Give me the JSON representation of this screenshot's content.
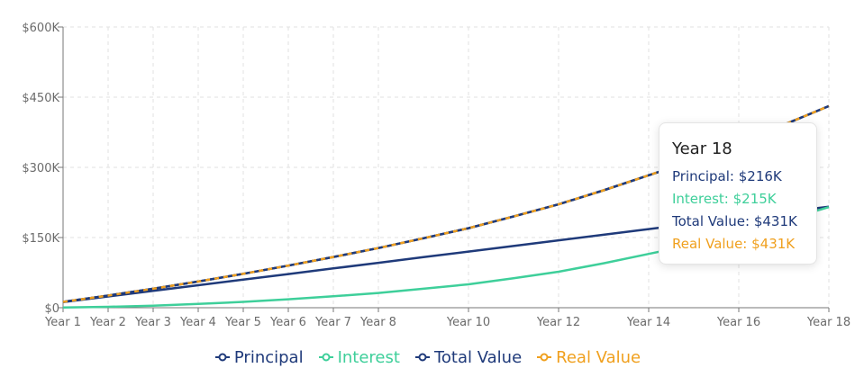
{
  "chart_data": {
    "type": "line",
    "x": [
      1,
      2,
      3,
      4,
      5,
      6,
      7,
      8,
      9,
      10,
      11,
      12,
      13,
      14,
      15,
      16,
      17,
      18
    ],
    "x_tick_labels": [
      {
        "x": 1,
        "label": "Year 1"
      },
      {
        "x": 2,
        "label": "Year 2"
      },
      {
        "x": 3,
        "label": "Year 3"
      },
      {
        "x": 4,
        "label": "Year 4"
      },
      {
        "x": 5,
        "label": "Year 5"
      },
      {
        "x": 6,
        "label": "Year 6"
      },
      {
        "x": 7,
        "label": "Year 7"
      },
      {
        "x": 8,
        "label": "Year 8"
      },
      {
        "x": 10,
        "label": "Year 10"
      },
      {
        "x": 12,
        "label": "Year 12"
      },
      {
        "x": 14,
        "label": "Year 14"
      },
      {
        "x": 16,
        "label": "Year 16"
      },
      {
        "x": 18,
        "label": "Year 18"
      }
    ],
    "y_ticks": [
      0,
      150000,
      300000,
      450000,
      600000
    ],
    "y_tick_labels": [
      "$0",
      "$150K",
      "$300K",
      "$450K",
      "$600K"
    ],
    "ylim": [
      0,
      600000
    ],
    "xlim": [
      1,
      18
    ],
    "grid": true,
    "legend_position": "bottom",
    "series": [
      {
        "name": "Principal",
        "color": "#1f3a7a",
        "dashed": false,
        "values": [
          12000,
          24000,
          36000,
          48000,
          60000,
          72000,
          84000,
          96000,
          108000,
          120000,
          132000,
          144000,
          156000,
          168000,
          180000,
          192000,
          204000,
          216000
        ]
      },
      {
        "name": "Interest",
        "color": "#3ecf9a",
        "dashed": false,
        "values": [
          500,
          2000,
          4500,
          8000,
          12500,
          18000,
          24500,
          31500,
          40500,
          50000,
          63000,
          77000,
          95000,
          115000,
          135000,
          160000,
          187000,
          215000
        ]
      },
      {
        "name": "Total Value",
        "color": "#1f3a7a",
        "dashed": false,
        "values": [
          12500,
          26000,
          40500,
          56000,
          72500,
          90000,
          108500,
          127500,
          148500,
          170000,
          195000,
          221000,
          251000,
          283000,
          315000,
          352000,
          391000,
          431000
        ]
      },
      {
        "name": "Real Value",
        "color": "#f0a01e",
        "dashed": true,
        "values": [
          12500,
          26000,
          40500,
          56000,
          72500,
          90000,
          108500,
          127500,
          148500,
          170000,
          195000,
          221000,
          251000,
          283000,
          315000,
          352000,
          391000,
          431000
        ]
      }
    ]
  },
  "legend": [
    {
      "label": "Principal",
      "color": "#1f3a7a"
    },
    {
      "label": "Interest",
      "color": "#3ecf9a"
    },
    {
      "label": "Total Value",
      "color": "#1f3a7a"
    },
    {
      "label": "Real Value",
      "color": "#f0a01e"
    }
  ],
  "tooltip": {
    "title": "Year 18",
    "rows": [
      {
        "text": "Principal: $216K",
        "color": "#1f3a7a"
      },
      {
        "text": "Interest: $215K",
        "color": "#3ecf9a"
      },
      {
        "text": "Total Value: $431K",
        "color": "#1f3a7a"
      },
      {
        "text": "Real Value: $431K",
        "color": "#f0a01e"
      }
    ]
  }
}
